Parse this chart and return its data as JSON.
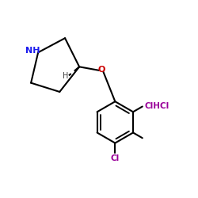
{
  "bg_color": "#ffffff",
  "bond_color": "#000000",
  "NH_color": "#1a1aee",
  "O_color": "#cc0000",
  "Cl_color": "#990099",
  "H_color": "#404040",
  "line_width": 1.5,
  "fig_width": 2.5,
  "fig_height": 2.5,
  "dpi": 100,
  "xlim": [
    -0.5,
    5.0
  ],
  "ylim": [
    -0.3,
    4.5
  ]
}
